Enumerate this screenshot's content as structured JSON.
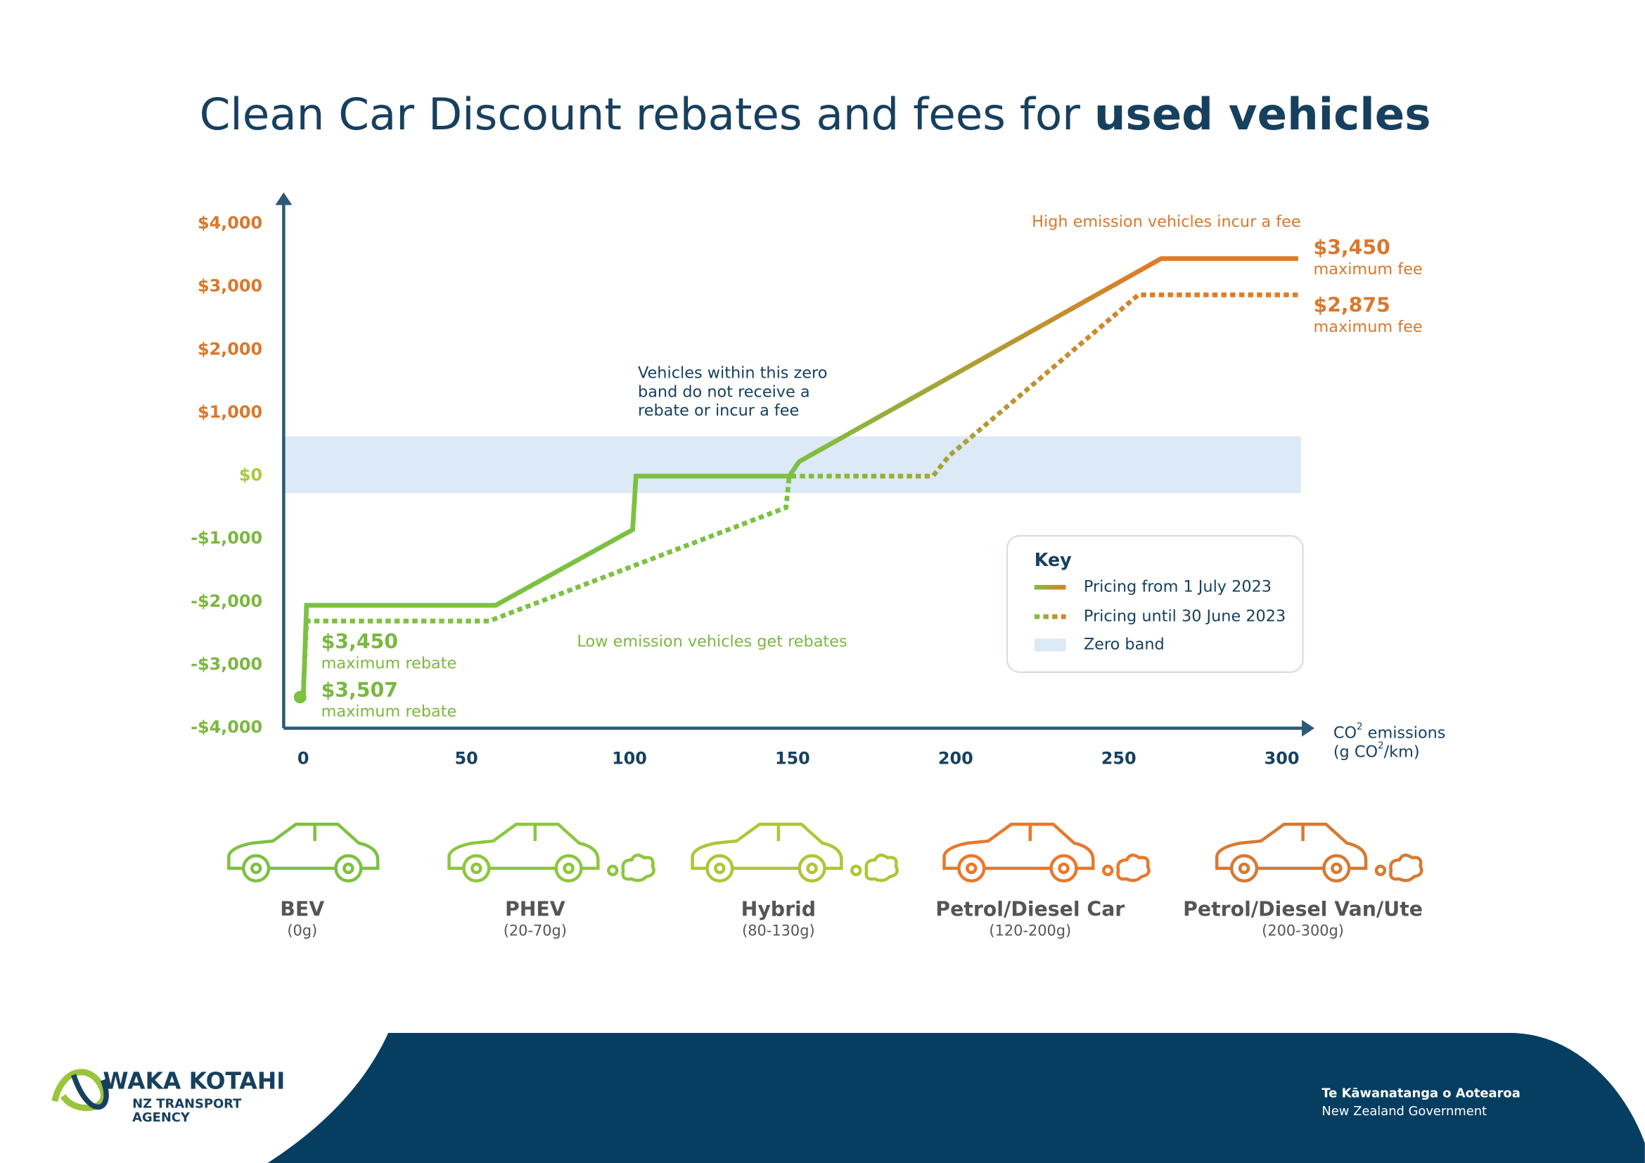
{
  "chart_data": {
    "type": "line",
    "title": {
      "regular": "Clean Car Discount rebates and fees for ",
      "bold": "used vehicles"
    },
    "x_label": {
      "line1": [
        "CO",
        "2",
        " emissions"
      ],
      "line2": [
        "(g CO",
        "2",
        "/km)"
      ]
    },
    "xlim": [
      -6,
      310
    ],
    "xticks": [
      0,
      50,
      100,
      150,
      200,
      250,
      300
    ],
    "ylim": [
      -4000,
      4500
    ],
    "yticks": [
      {
        "value": 4000,
        "label": "$4,000"
      },
      {
        "value": 3000,
        "label": "$3,000"
      },
      {
        "value": 2000,
        "label": "$2,000"
      },
      {
        "value": 1000,
        "label": "$1,000"
      },
      {
        "value": 0,
        "label": "$0"
      },
      {
        "value": -1000,
        "label": "-$1,000"
      },
      {
        "value": -2000,
        "label": "-$2,000"
      },
      {
        "value": -3000,
        "label": "-$3,000"
      },
      {
        "value": -4000,
        "label": "-$4,000"
      }
    ],
    "fee_color": "#d9782c",
    "rebate_color": "#7ab83f",
    "zero_band": {
      "name": "Zero band",
      "range": [
        -270,
        630
      ],
      "color": "#dce9f6"
    },
    "series": [
      {
        "name": "Pricing from 1 July 2023",
        "style": "solid",
        "gradient": [
          "#7cc142",
          "#e07b27"
        ],
        "x": [
          0,
          1,
          59,
          101,
          102,
          149,
          152,
          263,
          305
        ],
        "values": [
          -3507,
          -2050,
          -2050,
          -850,
          0,
          0,
          230,
          3450,
          3450
        ]
      },
      {
        "name": "Pricing until 30 June 2023",
        "style": "dotted",
        "gradient": [
          "#7cc142",
          "#e07b27"
        ],
        "x": [
          0,
          1,
          57,
          148,
          149,
          193,
          198,
          256,
          305
        ],
        "values": [
          -3450,
          -2300,
          -2300,
          -500,
          0,
          0,
          320,
          2875,
          2875
        ]
      }
    ],
    "legend_title": "Key",
    "annotations": {
      "fee_note": "High emission vehicles incur a fee",
      "zero_note": [
        "Vehicles within this zero",
        "band do not receive a",
        "rebate or incur a fee"
      ],
      "rebate_note": "Low emission vehicles get rebates",
      "labels": [
        {
          "label": "$3,450",
          "note": "maximum fee"
        },
        {
          "label": "$2,875",
          "note": "maximum fee"
        },
        {
          "label": "$3,450",
          "note": "maximum rebate"
        },
        {
          "label": "$3,507",
          "note": "maximum rebate"
        }
      ]
    },
    "vehicles": [
      {
        "name": "BEV",
        "range": "(0g)",
        "color": "#7cc142"
      },
      {
        "name": "PHEV",
        "range": "(20-70g)",
        "color": "#8cc63f"
      },
      {
        "name": "Hybrid",
        "range": "(80-130g)",
        "color": "#aec636"
      },
      {
        "name": "Petrol/Diesel Car",
        "range": "(120-200g)",
        "color": "#e8782c"
      },
      {
        "name": "Petrol/Diesel Van/Ute",
        "range": "(200-300g)",
        "color": "#d67a32"
      }
    ]
  },
  "footer": {
    "logo": [
      "WAKA KOTAHI",
      "NZ TRANSPORT",
      "AGENCY"
    ],
    "government": [
      "Te Kāwanatanga o Aotearoa",
      "New Zealand Government"
    ]
  }
}
